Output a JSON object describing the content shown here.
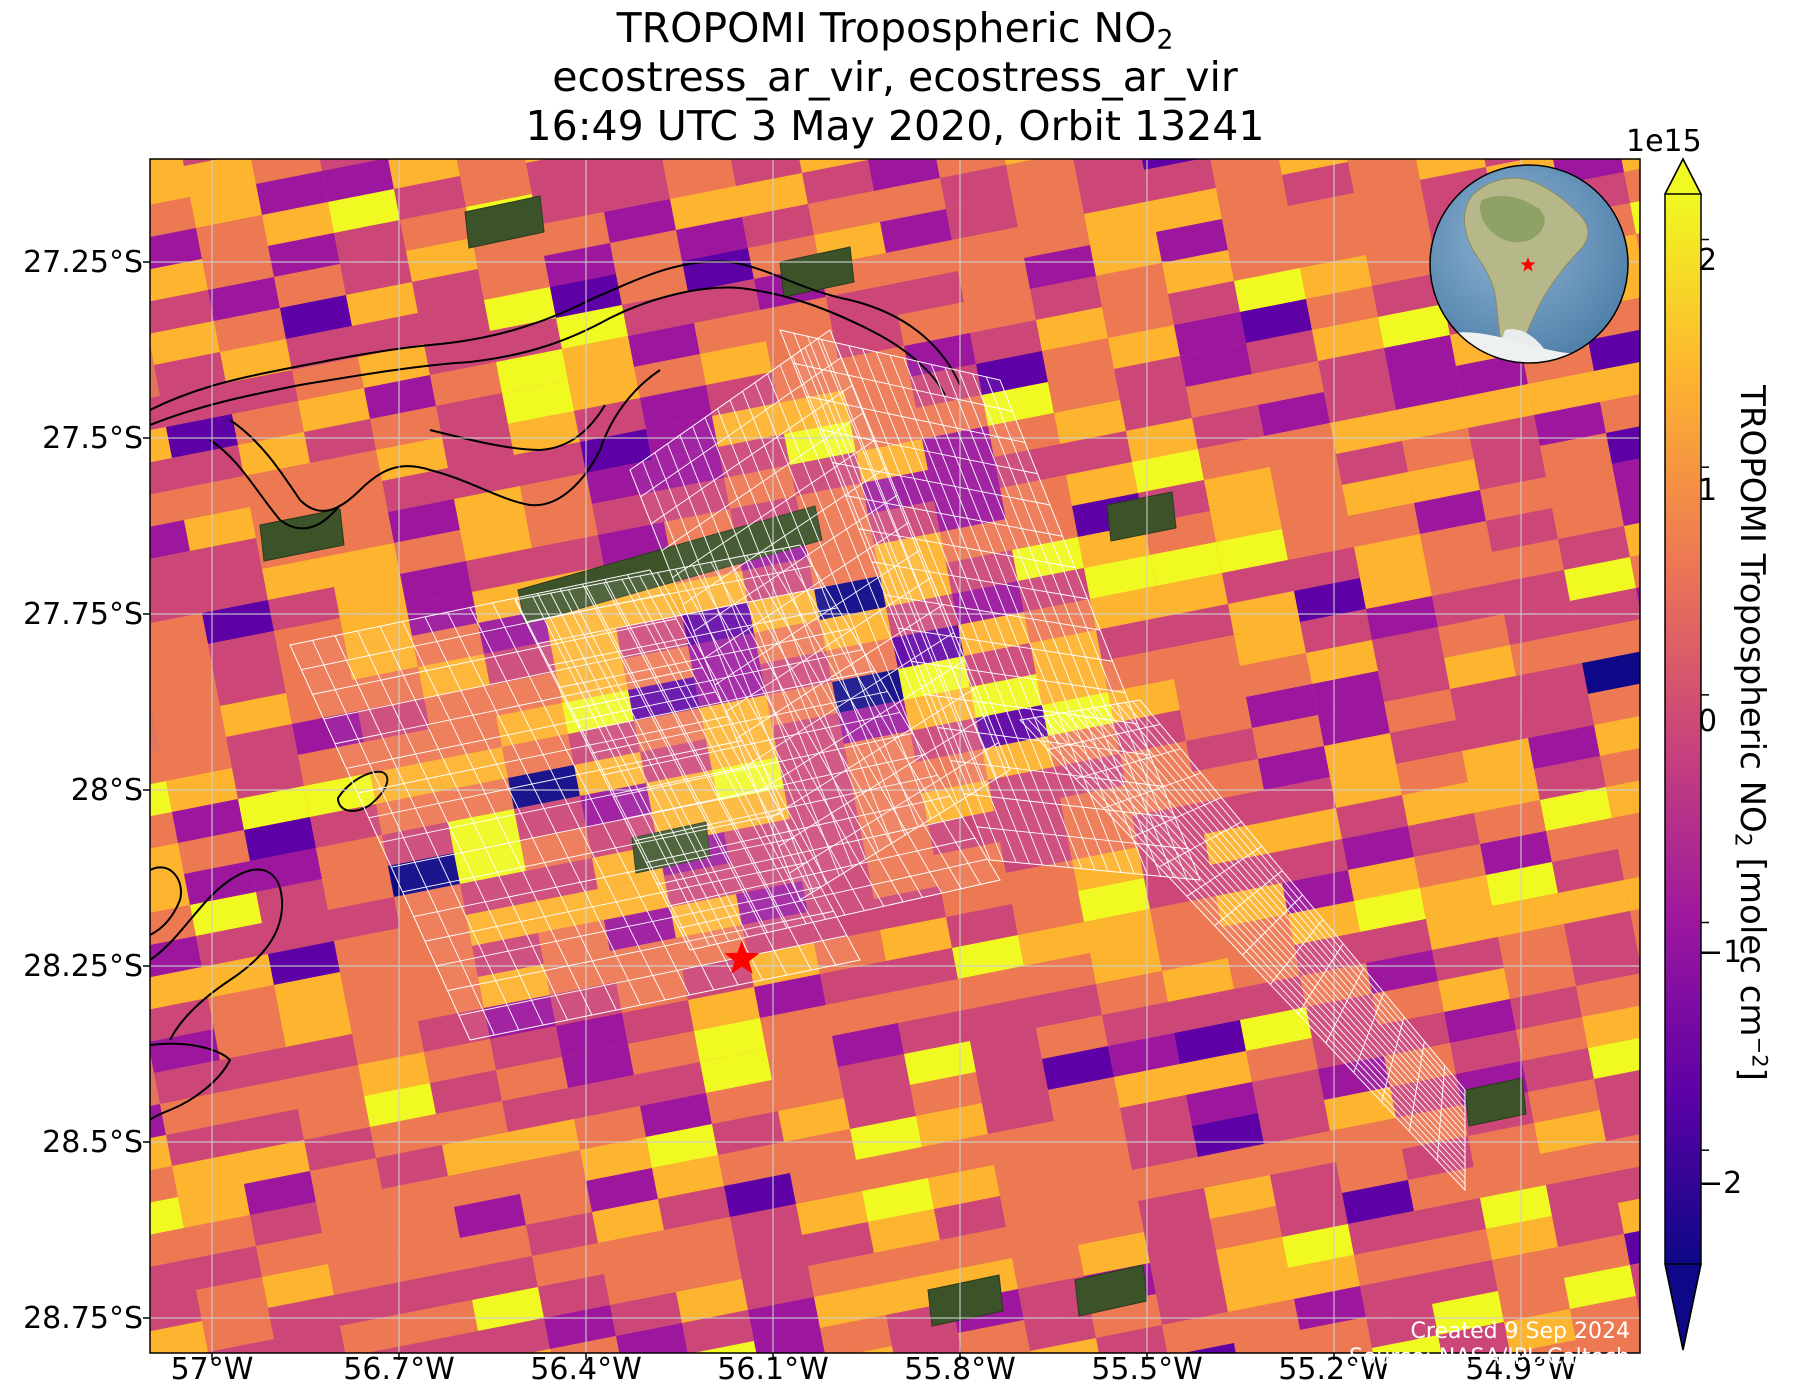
{
  "title": {
    "line1_text": "TROPOMI Tropospheric NO",
    "line1_sub": "2",
    "line2": "ecostress_ar_vir, ecostress_ar_vir",
    "line3": "16:49 UTC 3 May 2020, Orbit 13241"
  },
  "axes": {
    "lat_ticks": [
      "27.25°S",
      "27.5°S",
      "27.75°S",
      "28°S",
      "28.25°S",
      "28.5°S",
      "28.75°S"
    ],
    "lon_ticks": [
      "57°W",
      "56.7°W",
      "56.4°W",
      "56.1°W",
      "55.8°W",
      "55.5°W",
      "55.2°W",
      "54.9°W"
    ],
    "lat_range": [
      -28.8,
      -27.1
    ],
    "lon_range": [
      -57.15,
      -54.75
    ],
    "gridlines": true
  },
  "colorbar": {
    "exponent": "1e15",
    "tick_labels": [
      "2",
      "1",
      "0",
      "−1",
      "−2"
    ],
    "tick_values": [
      2,
      1,
      0,
      -1,
      -2
    ],
    "range": [
      -2.5,
      2.2
    ],
    "extend": "both",
    "colormap": "plasma",
    "label_prefix": "TROPOMI Tropospheric NO",
    "label_sub": "2",
    "label_middle": " [molec cm",
    "label_sup": "−2",
    "label_suffix": "]"
  },
  "credits": {
    "created": "Created 9 Sep 2024",
    "source": "Source: NASA/JPL-Caltech"
  },
  "target_marker": {
    "lat": -28.24,
    "lon": -56.15,
    "color": "#ff0000",
    "symbol": "star"
  },
  "inset_globe": {
    "marker_color": "#ff0000",
    "region": "South America"
  },
  "colors": {
    "river_outline": "#000000",
    "footprint_grid": "#ffffff",
    "gridline": "#cfcfcf",
    "scale": [
      "#0d0887",
      "#5d01a6",
      "#9c179e",
      "#cc4778",
      "#ed7953",
      "#fdb42f",
      "#f0f921"
    ]
  }
}
